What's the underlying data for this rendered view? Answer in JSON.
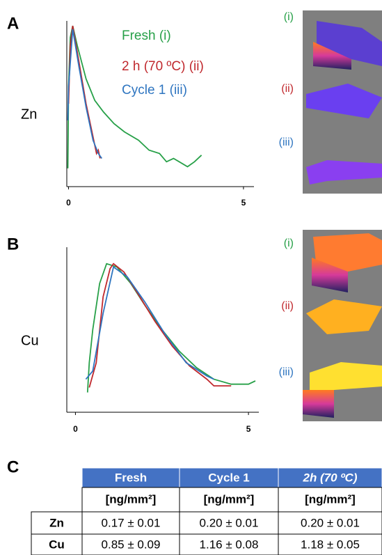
{
  "chart_data": [
    {
      "type": "line",
      "panel": "A",
      "ylabel": "Zn",
      "xlim": [
        -0.05,
        5.3
      ],
      "ylim": [
        0,
        1
      ],
      "xticks": [
        0,
        5
      ],
      "series": [
        {
          "name": "Fresh (i)",
          "color": "#27a048",
          "x": [
            -0.02,
            0.0,
            0.05,
            0.12,
            0.25,
            0.5,
            0.75,
            1.0,
            1.3,
            1.6,
            2.0,
            2.3,
            2.6,
            2.8,
            3.0,
            3.4,
            3.6,
            3.8
          ],
          "values": [
            0.11,
            0.6,
            0.9,
            0.97,
            0.85,
            0.65,
            0.52,
            0.45,
            0.38,
            0.33,
            0.28,
            0.22,
            0.2,
            0.15,
            0.17,
            0.12,
            0.15,
            0.19
          ]
        },
        {
          "name": "2 h (70 ºC) (ii)",
          "color": "#c0282d",
          "x": [
            0.0,
            0.05,
            0.12,
            0.3,
            0.5,
            0.7,
            0.8,
            0.85,
            0.9
          ],
          "values": [
            0.5,
            0.85,
            0.97,
            0.75,
            0.5,
            0.3,
            0.2,
            0.22,
            0.17
          ]
        },
        {
          "name": "Cycle 1 (iii)",
          "color": "#2e75c0",
          "x": [
            -0.02,
            0.0,
            0.12,
            0.3,
            0.5,
            0.7,
            0.85,
            0.95
          ],
          "values": [
            0.4,
            0.6,
            0.95,
            0.72,
            0.48,
            0.28,
            0.2,
            0.17
          ]
        }
      ],
      "images": [
        {
          "label": "(i)",
          "color": "#27a048"
        },
        {
          "label": "(ii)",
          "color": "#c0282d"
        },
        {
          "label": "(iii)",
          "color": "#2e75c0"
        }
      ]
    },
    {
      "type": "line",
      "panel": "B",
      "ylabel": "Cu",
      "xlim": [
        -0.25,
        5.3
      ],
      "ylim": [
        0,
        1
      ],
      "xticks": [
        0,
        5
      ],
      "series": [
        {
          "color": "#27a048",
          "x": [
            0.35,
            0.4,
            0.5,
            0.7,
            0.9,
            1.2,
            1.6,
            2.0,
            2.5,
            3.0,
            3.5,
            4.0,
            4.5,
            5.0,
            5.2
          ],
          "values": [
            0.12,
            0.3,
            0.5,
            0.78,
            0.9,
            0.88,
            0.78,
            0.65,
            0.5,
            0.37,
            0.27,
            0.2,
            0.17,
            0.17,
            0.19
          ]
        },
        {
          "color": "#c0282d",
          "x": [
            0.4,
            0.6,
            0.8,
            1.0,
            1.1,
            1.4,
            1.8,
            2.3,
            2.8,
            3.3,
            3.8,
            4.0,
            4.5
          ],
          "values": [
            0.15,
            0.3,
            0.7,
            0.87,
            0.9,
            0.85,
            0.72,
            0.55,
            0.4,
            0.28,
            0.2,
            0.16,
            0.16
          ]
        },
        {
          "color": "#2e75c0",
          "x": [
            0.3,
            0.5,
            0.8,
            1.1,
            1.5,
            2.0,
            2.6,
            3.2,
            3.8,
            4.0
          ],
          "values": [
            0.2,
            0.25,
            0.6,
            0.88,
            0.82,
            0.67,
            0.47,
            0.3,
            0.22,
            0.2
          ]
        }
      ],
      "images": [
        {
          "label": "(i)",
          "color": "#27a048"
        },
        {
          "label": "(ii)",
          "color": "#c0282d"
        },
        {
          "label": "(iii)",
          "color": "#2e75c0"
        }
      ]
    }
  ],
  "table": {
    "panel": "C",
    "header": [
      "Fresh",
      "Cycle 1",
      "2h (70 ºC)"
    ],
    "units": [
      "[ng/mm²]",
      "[ng/mm²]",
      "[ng/mm²]"
    ],
    "rows": [
      [
        "Zn",
        "0.17 ± 0.01",
        "0.20 ± 0.01",
        "0.20 ± 0.01"
      ],
      [
        "Cu",
        "0.85 ± 0.09",
        "1.16 ± 0.08",
        "1.18 ± 0.05"
      ]
    ]
  }
}
